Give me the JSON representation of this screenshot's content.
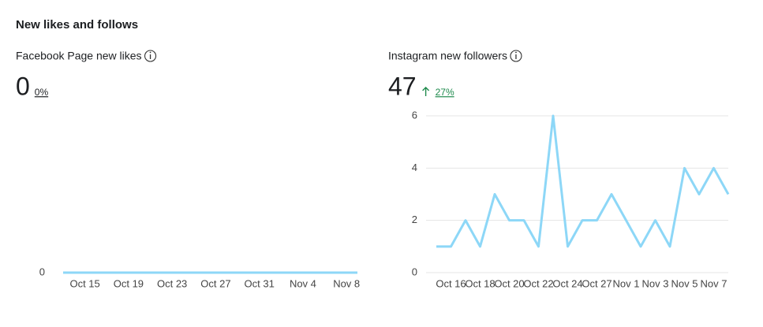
{
  "header": "New likes and follows",
  "chart_data": [
    {
      "type": "line",
      "title": "Facebook Page new likes",
      "total": 0,
      "change": "0%",
      "categories": [
        null,
        null,
        "Oct 15",
        null,
        null,
        null,
        "Oct 19",
        null,
        null,
        null,
        "Oct 23",
        null,
        null,
        null,
        "Oct 27",
        null,
        null,
        null,
        "Oct 31",
        null,
        null,
        null,
        "Nov 4",
        null,
        null,
        null,
        "Nov 8",
        null
      ],
      "values": [
        0,
        0,
        0,
        0,
        0,
        0,
        0,
        0,
        0,
        0,
        0,
        0,
        0,
        0,
        0,
        0,
        0,
        0,
        0,
        0,
        0,
        0,
        0,
        0,
        0,
        0,
        0,
        0
      ],
      "color": "#8dd7f7",
      "ylim": [
        0,
        1
      ],
      "yticks": [
        0
      ],
      "grid": true
    },
    {
      "type": "line",
      "title": "Instagram new followers",
      "total": 47,
      "change": "27%",
      "categories": [
        null,
        "Oct 16",
        null,
        "Oct 18",
        null,
        "Oct 20",
        null,
        "Oct 22",
        null,
        "Oct 24",
        null,
        "Oct 27",
        null,
        "Nov 1",
        null,
        "Nov 3",
        null,
        "Nov 5",
        null,
        "Nov 7",
        null
      ],
      "values": [
        1,
        1,
        2,
        1,
        3,
        2,
        2,
        1,
        6,
        1,
        2,
        2,
        3,
        2,
        1,
        2,
        1,
        4,
        3,
        4,
        3
      ],
      "color": "#8dd7f7",
      "ylim": [
        0,
        6
      ],
      "yticks": [
        0,
        2,
        4,
        6
      ],
      "grid": true
    }
  ]
}
